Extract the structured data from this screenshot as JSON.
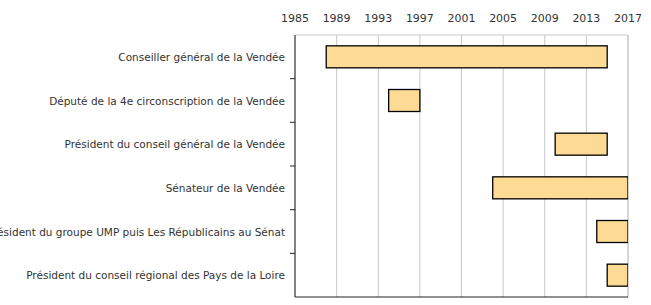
{
  "chart_data": {
    "type": "gantt",
    "categories": [
      "Conseiller général de la Vendée",
      "Député de la 4e circonscription de la Vendée",
      "Président du conseil général de la Vendée",
      "Sénateur de la Vendée",
      "Président du groupe UMP puis Les Républicains au Sénat",
      "Président du conseil régional des Pays de la Loire"
    ],
    "start": [
      1988,
      1994,
      2010,
      2004,
      2014,
      2015
    ],
    "end": [
      2015,
      1997,
      2015,
      2017,
      2017,
      2017
    ],
    "xlim": [
      1985,
      2017
    ],
    "xticks": [
      1985,
      1989,
      1993,
      1997,
      2001,
      2005,
      2009,
      2013,
      2017
    ],
    "orientation": "horizontal",
    "grid": true,
    "color": "#fedb95"
  }
}
